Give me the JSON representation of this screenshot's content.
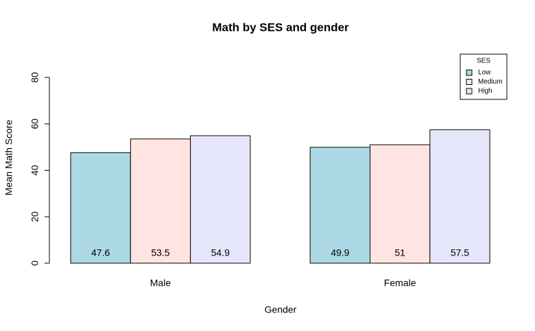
{
  "chart_data": {
    "type": "bar",
    "title": "Math by SES and gender",
    "x_label": "Gender",
    "y_label": "Mean Math Score",
    "categories": [
      "Male",
      "Female"
    ],
    "series": [
      {
        "name": "Low",
        "color": "#add8e6",
        "values": [
          47.6,
          49.9
        ]
      },
      {
        "name": "Medium",
        "color": "#ffe4e1",
        "values": [
          53.5,
          51
        ]
      },
      {
        "name": "High",
        "color": "#e6e6fa",
        "values": [
          54.9,
          57.5
        ]
      }
    ],
    "ylim": [
      0,
      80
    ],
    "yticks": [
      0,
      20,
      40,
      60,
      80
    ],
    "legend_title": "SES",
    "legend": "topright",
    "grid": false
  }
}
